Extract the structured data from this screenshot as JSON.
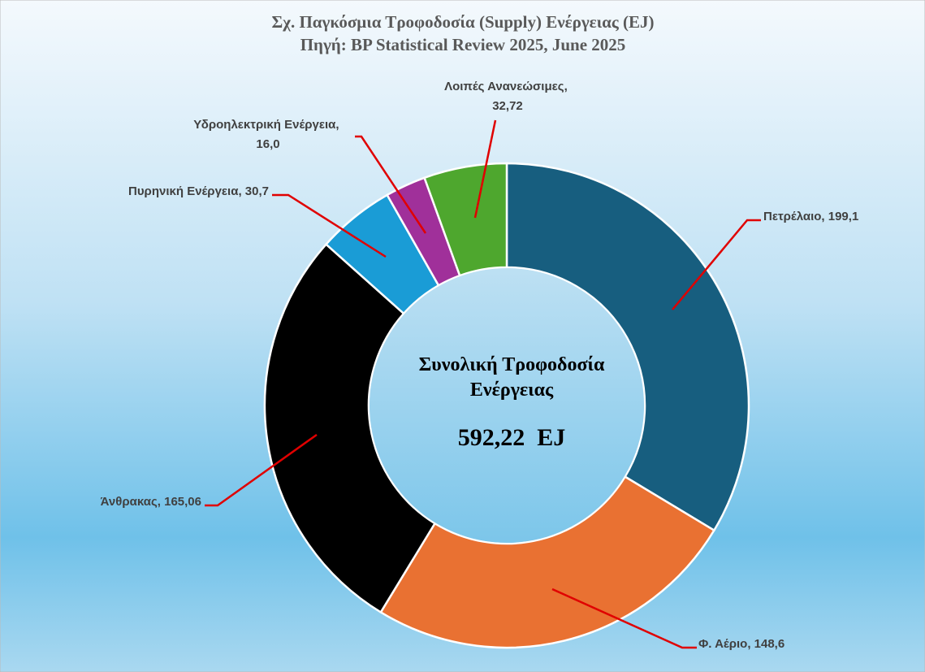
{
  "chart_data": {
    "type": "donut",
    "title": "Σχ. Παγκόσμια Τροφοδοσία (Supply) Ενέργειας (EJ)",
    "subtitle": "Πηγή: BP Statistical Review 2025, June 2025",
    "categories": [
      "Πετρέλαιο",
      "Φ. Αέριο",
      "Άνθρακας",
      "Πυρηνική Ενέργεια",
      "Υδροηλεκτρική Ενέργεια",
      "Λοιπές Ανανεώσιμες"
    ],
    "values": [
      199.1,
      148.6,
      165.06,
      30.7,
      16.0,
      32.72
    ],
    "value_labels": [
      "199,1",
      "148,6",
      "165,06",
      "30,7",
      "16,0",
      "32,72"
    ],
    "label_separator": ", ",
    "colors": [
      "#175e7f",
      "#e97132",
      "#000000",
      "#1a9cd6",
      "#a0309a",
      "#4ea72e"
    ],
    "center_title": [
      "Συνολική Τροφοδοσία",
      "Ενέργειας"
    ],
    "center_value": "592,22  EJ"
  }
}
